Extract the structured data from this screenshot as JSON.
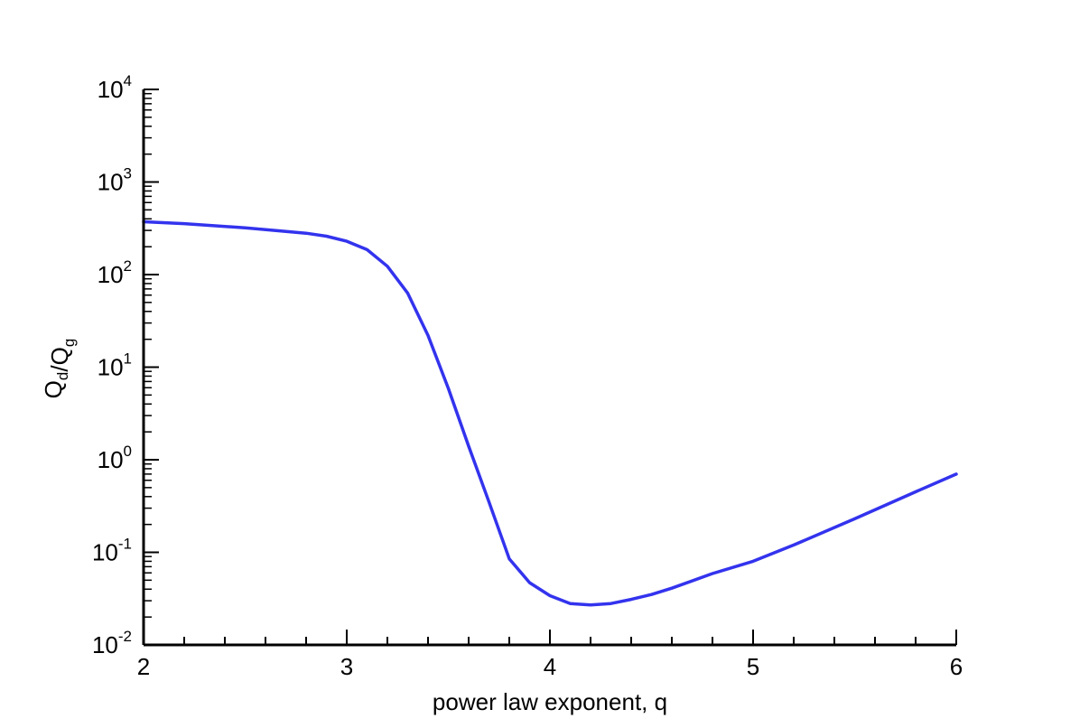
{
  "chart_data": {
    "type": "line",
    "title": "",
    "xlabel": "power law exponent, q",
    "ylabel": {
      "parts": [
        {
          "text": "Q",
          "sub": "d"
        },
        {
          "text": "/Q",
          "sub": "g"
        }
      ]
    },
    "xlim": [
      2,
      6
    ],
    "ylim": [
      0.01,
      10000
    ],
    "y_scale": "log",
    "x_ticks": [
      "2",
      "3",
      "4",
      "5",
      "6"
    ],
    "y_ticks": [
      {
        "base": "10",
        "exp": "-2"
      },
      {
        "base": "10",
        "exp": "-1"
      },
      {
        "base": "10",
        "exp": "0"
      },
      {
        "base": "10",
        "exp": "1"
      },
      {
        "base": "10",
        "exp": "2"
      },
      {
        "base": "10",
        "exp": "3"
      },
      {
        "base": "10",
        "exp": "4"
      }
    ],
    "grid": false,
    "legend": "none",
    "series": [
      {
        "color": "#3333ee",
        "x": [
          2.0,
          2.2,
          2.5,
          2.8,
          2.9,
          3.0,
          3.1,
          3.2,
          3.3,
          3.4,
          3.5,
          3.6,
          3.7,
          3.8,
          3.9,
          4.0,
          4.1,
          4.2,
          4.3,
          4.4,
          4.5,
          4.6,
          4.8,
          5.0,
          5.2,
          5.5,
          5.8,
          6.0
        ],
        "y": [
          372,
          355,
          320,
          280,
          260,
          229,
          186,
          123,
          63,
          22,
          5.9,
          1.4,
          0.35,
          0.085,
          0.047,
          0.034,
          0.028,
          0.027,
          0.028,
          0.031,
          0.035,
          0.041,
          0.059,
          0.08,
          0.12,
          0.23,
          0.45,
          0.7
        ]
      }
    ]
  }
}
